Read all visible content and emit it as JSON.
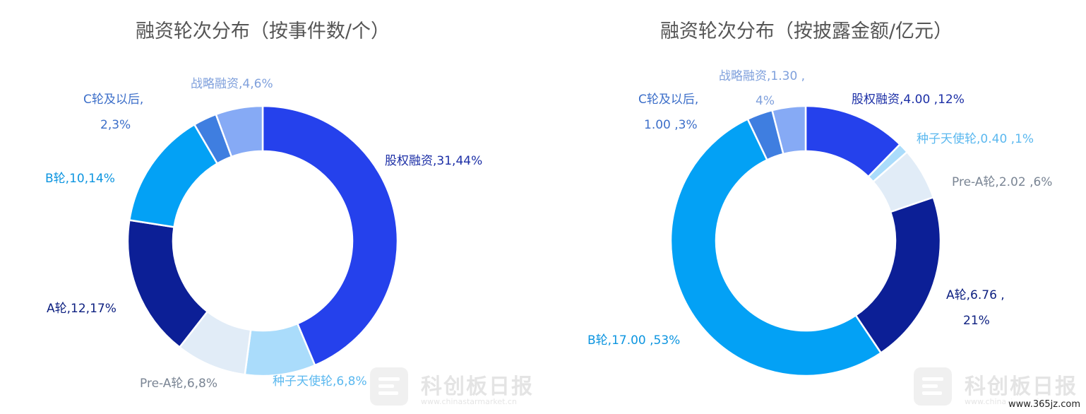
{
  "chart_data": [
    {
      "type": "pie",
      "title": "融资轮次分布（按事件数/个）",
      "slices": [
        {
          "name": "股权融资",
          "value": 31,
          "percent": "44%",
          "color": "#2541ec",
          "label_color": "#1c2fa6"
        },
        {
          "name": "种子天使轮",
          "value": 6,
          "percent": "8%",
          "color": "#aadcfb",
          "label_color": "#5bb8ef"
        },
        {
          "name": "Pre-A轮",
          "value": 6,
          "percent": "8%",
          "color": "#e1ecf7",
          "label_color": "#7a8594"
        },
        {
          "name": "A轮",
          "value": 12,
          "percent": "17%",
          "color": "#0c1f96",
          "label_color": "#0c1f80"
        },
        {
          "name": "B轮",
          "value": 10,
          "percent": "14%",
          "color": "#03a1f5",
          "label_color": "#0d95e0"
        },
        {
          "name": "C轮及以后",
          "value": 2,
          "percent": "3%",
          "color": "#3f7ee0",
          "label_color": "#3d6fc9"
        },
        {
          "name": "战略融资",
          "value": 4,
          "percent": "6%",
          "color": "#86aaf5",
          "label_color": "#7fa0dc"
        }
      ],
      "labels": [
        [
          "股权融资,31,44%"
        ],
        [
          "种子天使轮,6,8%"
        ],
        [
          "Pre-A轮,6,8%"
        ],
        [
          "A轮,12,17%"
        ],
        [
          "B轮,10,14%"
        ],
        [
          "C轮及以后,",
          "2,3%"
        ],
        [
          "战略融资,4,6%"
        ]
      ]
    },
    {
      "type": "pie",
      "title": "融资轮次分布（按披露金额/亿元）",
      "slices": [
        {
          "name": "股权融资",
          "value": 4.0,
          "percent": "12%",
          "color": "#2541ec",
          "label_color": "#1c2fa6"
        },
        {
          "name": "种子天使轮",
          "value": 0.4,
          "percent": "1%",
          "color": "#aadcfb",
          "label_color": "#5bb8ef"
        },
        {
          "name": "Pre-A轮",
          "value": 2.02,
          "percent": "6%",
          "color": "#e1ecf7",
          "label_color": "#7a8594"
        },
        {
          "name": "A轮",
          "value": 6.76,
          "percent": "21%",
          "color": "#0c1f96",
          "label_color": "#0c1f80"
        },
        {
          "name": "B轮",
          "value": 17.0,
          "percent": "53%",
          "color": "#03a1f5",
          "label_color": "#0d95e0"
        },
        {
          "name": "C轮及以后",
          "value": 1.0,
          "percent": "3%",
          "color": "#3f7ee0",
          "label_color": "#3d6fc9"
        },
        {
          "name": "战略融资",
          "value": 1.3,
          "percent": "4%",
          "color": "#86aaf5",
          "label_color": "#7fa0dc"
        }
      ],
      "labels": [
        [
          "股权融资,4.00 ,12%"
        ],
        [
          "种子天使轮,0.40 ,1%"
        ],
        [
          "Pre-A轮,2.02 ,6%"
        ],
        [
          "A轮,6.76 ,",
          "21%"
        ],
        [
          "B轮,17.00 ,53%"
        ],
        [
          "C轮及以后,",
          "1.00 ,3%"
        ],
        [
          "战略融资,1.30 ,",
          "4%"
        ]
      ]
    }
  ],
  "watermark": {
    "name": "科创板日报",
    "url": "www.chinastarmarket.cn"
  },
  "site_mark": "www.365jz.com"
}
